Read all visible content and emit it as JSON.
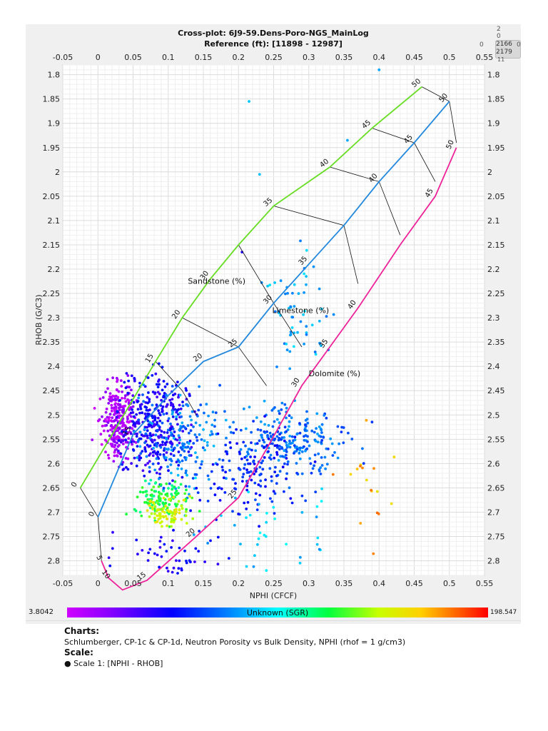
{
  "chart_data": {
    "type": "scatter",
    "title": "Cross-plot: 6J9-59.Dens-Poro-NGS_MainLog",
    "subtitle": "Reference (ft): [11898 - 12987]",
    "xlabel": "NPHI (CFCF)",
    "ylabel": "RHOB (G/C3)",
    "xlim": [
      -0.05,
      0.55
    ],
    "ylim": [
      1.78,
      2.83
    ],
    "y_inverted": true,
    "grid": true,
    "xticks": [
      -0.05,
      0,
      0.05,
      0.1,
      0.15,
      0.2,
      0.25,
      0.3,
      0.35,
      0.4,
      0.45,
      0.5,
      0.55
    ],
    "yticks": [
      1.8,
      1.85,
      1.9,
      1.95,
      2,
      2.05,
      2.1,
      2.15,
      2.2,
      2.25,
      2.3,
      2.35,
      2.4,
      2.45,
      2.5,
      2.55,
      2.6,
      2.65,
      2.7,
      2.75,
      2.8
    ],
    "lithology_lines": [
      {
        "name": "Sandstone (%)",
        "color": "#66dd22",
        "points": [
          [
            -0.025,
            2.65
          ],
          [
            0.082,
            2.39
          ],
          [
            0.12,
            2.3
          ],
          [
            0.16,
            2.22
          ],
          [
            0.2,
            2.15
          ],
          [
            0.25,
            2.07
          ],
          [
            0.33,
            1.99
          ],
          [
            0.39,
            1.91
          ],
          [
            0.461,
            1.825
          ]
        ],
        "ticks": [
          "0",
          "15",
          "20",
          "30",
          "35",
          "40",
          "45",
          "50"
        ]
      },
      {
        "name": "Limestone (%)",
        "color": "#2288dd",
        "points": [
          [
            0,
            2.71
          ],
          [
            0.05,
            2.54
          ],
          [
            0.1,
            2.46
          ],
          [
            0.15,
            2.39
          ],
          [
            0.2,
            2.36
          ],
          [
            0.25,
            2.27
          ],
          [
            0.3,
            2.19
          ],
          [
            0.35,
            2.11
          ],
          [
            0.4,
            2.02
          ],
          [
            0.45,
            1.94
          ],
          [
            0.5,
            1.855
          ]
        ],
        "ticks": [
          "0",
          "15",
          "20",
          "25",
          "30",
          "35",
          "40",
          "45",
          "50"
        ]
      },
      {
        "name": "Dolomite (%)",
        "color": "#ee2299",
        "points": [
          [
            0.005,
            2.8
          ],
          [
            0.015,
            2.835
          ],
          [
            0.035,
            2.86
          ],
          [
            0.07,
            2.84
          ],
          [
            0.14,
            2.75
          ],
          [
            0.2,
            2.67
          ],
          [
            0.24,
            2.57
          ],
          [
            0.29,
            2.44
          ],
          [
            0.33,
            2.36
          ],
          [
            0.37,
            2.28
          ],
          [
            0.43,
            2.15
          ],
          [
            0.48,
            2.05
          ],
          [
            0.51,
            1.95
          ]
        ],
        "ticks": [
          "5",
          "10",
          "15",
          "20",
          "25",
          "30",
          "35",
          "40",
          "45",
          "50"
        ]
      }
    ],
    "connector_pairs": [
      [
        [
          -0.025,
          2.65
        ],
        [
          0.0,
          2.71
        ],
        [
          0.005,
          2.8
        ]
      ],
      [
        [
          0.082,
          2.39
        ],
        [
          0.12,
          2.45
        ],
        [
          0.14,
          2.5
        ]
      ],
      [
        [
          0.12,
          2.3
        ],
        [
          0.2,
          2.36
        ],
        [
          0.24,
          2.44
        ]
      ],
      [
        [
          0.2,
          2.15
        ],
        [
          0.25,
          2.27
        ],
        [
          0.29,
          2.36
        ]
      ],
      [
        [
          0.25,
          2.07
        ],
        [
          0.35,
          2.11
        ],
        [
          0.37,
          2.23
        ]
      ],
      [
        [
          0.33,
          1.99
        ],
        [
          0.4,
          2.02
        ],
        [
          0.43,
          2.13
        ]
      ],
      [
        [
          0.39,
          1.91
        ],
        [
          0.45,
          1.94
        ],
        [
          0.48,
          2.02
        ]
      ],
      [
        [
          0.461,
          1.825
        ],
        [
          0.5,
          1.855
        ],
        [
          0.51,
          1.94
        ]
      ]
    ],
    "annotations": [
      {
        "text": "Sandstone (%)",
        "x": 0.128,
        "y": 2.23
      },
      {
        "text": "Limestone (%)",
        "x": 0.248,
        "y": 2.29
      },
      {
        "text": "Dolomite (%)",
        "x": 0.3,
        "y": 2.42
      }
    ],
    "color_scale": {
      "label": "Unknown (SGR)",
      "min": "3.8042",
      "max": "198.547"
    },
    "clusters": [
      {
        "cx": 0.03,
        "cy": 2.51,
        "sx": 0.012,
        "sy": 0.04,
        "n": 260,
        "c": 0.05
      },
      {
        "cx": 0.08,
        "cy": 2.52,
        "sx": 0.025,
        "sy": 0.05,
        "n": 330,
        "c": 0.22
      },
      {
        "cx": 0.12,
        "cy": 2.56,
        "sx": 0.03,
        "sy": 0.05,
        "n": 180,
        "c": 0.38
      },
      {
        "cx": 0.09,
        "cy": 2.67,
        "sx": 0.02,
        "sy": 0.02,
        "n": 110,
        "c": 0.62
      },
      {
        "cx": 0.1,
        "cy": 2.7,
        "sx": 0.015,
        "sy": 0.015,
        "n": 80,
        "c": 0.76
      },
      {
        "cx": 0.28,
        "cy": 2.55,
        "sx": 0.04,
        "sy": 0.035,
        "n": 220,
        "c": 0.36
      },
      {
        "cx": 0.22,
        "cy": 2.62,
        "sx": 0.04,
        "sy": 0.05,
        "n": 150,
        "c": 0.28
      },
      {
        "cx": 0.28,
        "cy": 2.3,
        "sx": 0.02,
        "sy": 0.06,
        "n": 60,
        "c": 0.42
      },
      {
        "cx": 0.1,
        "cy": 2.78,
        "sx": 0.04,
        "sy": 0.03,
        "n": 50,
        "c": 0.24
      },
      {
        "cx": 0.38,
        "cy": 2.65,
        "sx": 0.02,
        "sy": 0.05,
        "n": 18,
        "c": 0.86
      },
      {
        "cx": 0.25,
        "cy": 2.73,
        "sx": 0.05,
        "sy": 0.06,
        "n": 40,
        "c": 0.45
      }
    ],
    "outliers": [
      {
        "x": 0.4,
        "y": 1.79,
        "c": 0.42
      },
      {
        "x": 0.215,
        "y": 1.855,
        "c": 0.45
      },
      {
        "x": 0.355,
        "y": 1.935,
        "c": 0.42
      },
      {
        "x": 0.23,
        "y": 2.005,
        "c": 0.44
      },
      {
        "x": 0.205,
        "y": 2.165,
        "c": 0.22
      }
    ]
  },
  "corner": {
    "top": "2",
    "mid": "0",
    "left": "0",
    "right": "0",
    "box1": "2166",
    "box2": "2179",
    "bottom": "11"
  },
  "info": {
    "charts_heading": "Charts:",
    "charts_text": "Schlumberger, CP-1c & CP-1d, Neutron Porosity vs Bulk Density, NPHI (rhof = 1 g/cm3)",
    "scale_heading": "Scale:",
    "scale_text": "Scale 1:  [NPHI - RHOB]"
  }
}
